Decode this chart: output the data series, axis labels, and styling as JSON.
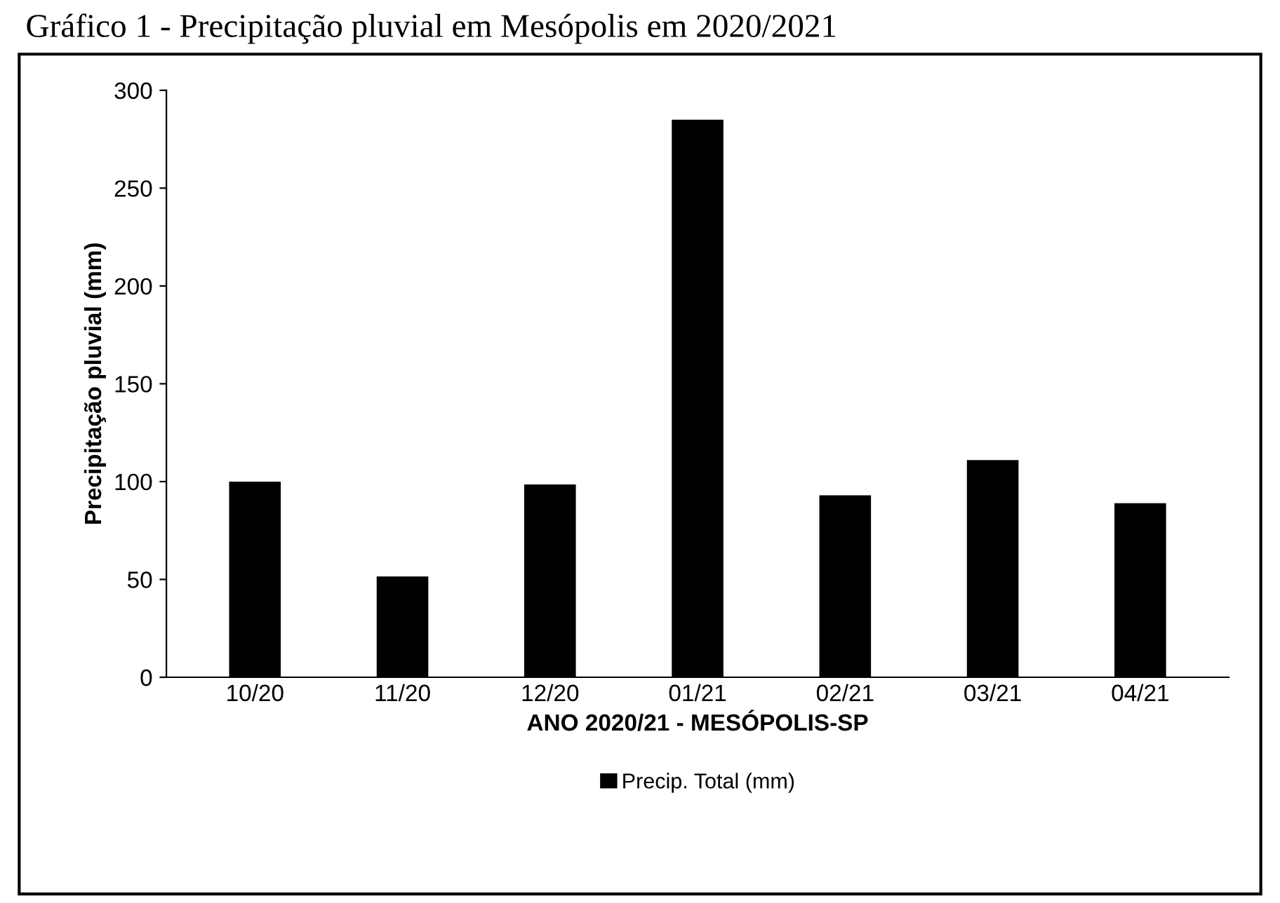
{
  "chart_data": {
    "type": "bar",
    "title": "Gráfico 1 - Precipitação pluvial em Mesópolis em 2020/2021",
    "xlabel": "ANO 2020/21 - MESÓPOLIS-SP",
    "ylabel": "Precipitação pluvial (mm)",
    "categories": [
      "10/20",
      "11/20",
      "12/20",
      "01/21",
      "02/21",
      "03/21",
      "04/21"
    ],
    "series": [
      {
        "name": "Precip. Total (mm)",
        "color": "#000000",
        "values": [
          100,
          51.5,
          98.5,
          285,
          93,
          111,
          89
        ]
      }
    ],
    "ylim": [
      0,
      300
    ],
    "yticks": [
      0,
      50,
      100,
      150,
      200,
      250,
      300
    ],
    "grid": false,
    "legend": "bottom"
  }
}
